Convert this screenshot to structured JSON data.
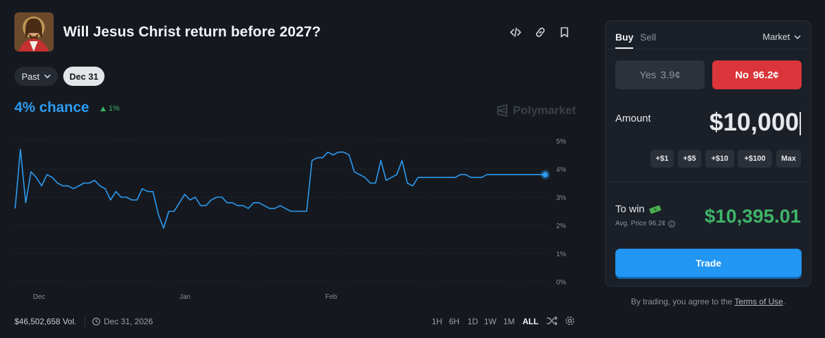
{
  "header": {
    "title": "Will Jesus Christ return before 2027?",
    "icons": [
      "embed-icon",
      "link-icon",
      "bookmark-icon"
    ]
  },
  "filters": {
    "past_label": "Past",
    "date_label": "Dec 31"
  },
  "chance": {
    "label": "4% chance",
    "delta": "1%"
  },
  "watermark": "Polymarket",
  "chart_data": {
    "type": "line",
    "x_ticks": [
      "Dec",
      "Jan",
      "Feb"
    ],
    "y_ticks": [
      "5%",
      "4%",
      "3%",
      "2%",
      "1%",
      "0%"
    ],
    "ylim": [
      0,
      5
    ],
    "grid": true,
    "series": [
      {
        "color": "#2d9cf2",
        "x": [
          0,
          1,
          2,
          3,
          4,
          5,
          6,
          7,
          8,
          9,
          10,
          11,
          12,
          13,
          14,
          15,
          16,
          17,
          18,
          19,
          20,
          21,
          22,
          23,
          24,
          25,
          26,
          27,
          28,
          29,
          30,
          31,
          32,
          33,
          34,
          35,
          36,
          37,
          38,
          39,
          40,
          41,
          42,
          43,
          44,
          45,
          46,
          47,
          48,
          49,
          50,
          51,
          52,
          53,
          54,
          55,
          56,
          57,
          58,
          59,
          60,
          61,
          62,
          63,
          64,
          65,
          66,
          67,
          68,
          69,
          70,
          71,
          72,
          73,
          74,
          75,
          76,
          77,
          78,
          79,
          80,
          81,
          82,
          83,
          84,
          85,
          86,
          87,
          88,
          89,
          90,
          91,
          92,
          93,
          94,
          95,
          96,
          97,
          98,
          99,
          100
        ],
        "y": [
          2.6,
          4.7,
          2.8,
          3.9,
          3.7,
          3.4,
          3.8,
          3.7,
          3.5,
          3.4,
          3.4,
          3.3,
          3.4,
          3.5,
          3.5,
          3.6,
          3.4,
          3.3,
          2.9,
          3.2,
          3.0,
          3.0,
          2.9,
          2.9,
          3.3,
          3.2,
          3.2,
          2.4,
          1.9,
          2.5,
          2.5,
          2.8,
          3.1,
          2.9,
          3.0,
          2.7,
          2.7,
          2.9,
          3.0,
          3.0,
          2.8,
          2.8,
          2.7,
          2.7,
          2.6,
          2.8,
          2.8,
          2.7,
          2.6,
          2.6,
          2.7,
          2.6,
          2.5,
          2.5,
          2.5,
          2.5,
          4.3,
          4.4,
          4.4,
          4.6,
          4.5,
          4.6,
          4.6,
          4.5,
          3.9,
          3.8,
          3.7,
          3.5,
          3.5,
          4.3,
          3.6,
          3.7,
          3.8,
          4.3,
          3.5,
          3.4,
          3.7,
          3.7,
          3.7,
          3.7,
          3.7,
          3.7,
          3.7,
          3.7,
          3.8,
          3.8,
          3.7,
          3.7,
          3.7,
          3.8,
          3.8,
          3.8,
          3.8,
          3.8,
          3.8,
          3.8,
          3.8,
          3.8,
          3.8,
          3.8,
          3.8
        ]
      }
    ]
  },
  "footer": {
    "volume": "$46,502,658 Vol.",
    "end_date": "Dec 31, 2026",
    "ranges": [
      "1H",
      "6H",
      "1D",
      "1W",
      "1M",
      "ALL"
    ],
    "active_range": "ALL"
  },
  "trade": {
    "tab_buy": "Buy",
    "tab_sell": "Sell",
    "order_type": "Market",
    "yes_label": "Yes",
    "yes_price": "3.9¢",
    "no_label": "No",
    "no_price": "96.2¢",
    "amount_label": "Amount",
    "amount_value": "$10,000",
    "quick_amounts": [
      "+$1",
      "+$5",
      "+$10",
      "+$100",
      "Max"
    ],
    "to_win_label": "To win",
    "avg_price": "Avg. Price 96.2¢",
    "to_win_value": "$10,395.01",
    "trade_button": "Trade",
    "colors": {
      "no": "#d9353a",
      "trade": "#2196f3",
      "win": "#3db468"
    }
  },
  "terms": {
    "prefix": "By trading, you agree to the",
    "link": "Terms of Use",
    "suffix": "."
  }
}
